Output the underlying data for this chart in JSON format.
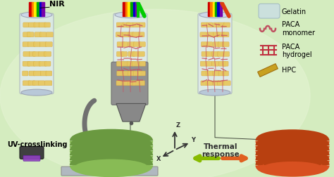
{
  "bg_color": "#d4ecbf",
  "bg_color2": "#e2f2d0",
  "tube_fill": "#dde8f0",
  "tube_border": "#a0a8b8",
  "fiber_yellow": "#e8c860",
  "fiber_yellow2": "#d4a840",
  "fiber_pink": "#c85060",
  "coil_green": "#88bb55",
  "coil_green_dark": "#6a9940",
  "coil_orange": "#d85020",
  "coil_orange_dark": "#b84010",
  "nozzle_color": "#888888",
  "printer_color": "#909090",
  "printer_dark": "#707070",
  "arrow_green": "#88bb00",
  "arrow_orange": "#e06020",
  "axis_color": "#333333",
  "rainbow_colors": [
    "#cc0000",
    "#ff7700",
    "#ffee00",
    "#00aa00",
    "#0000cc",
    "#7700aa"
  ],
  "uv_color": "#9040c0",
  "platform_color": "#b0b8c0",
  "legend_gelatin": "#c8dce8",
  "legend_monomer": "#c05060",
  "legend_hydrogel": "#c03040",
  "legend_hpc": "#c8a020",
  "font_size": 7,
  "nir_text": "NIR",
  "uv_text": "UV-crosslinking",
  "thermal_text": "Thermal\nresponse",
  "legend_labels": [
    "Gelatin",
    "PACA\nmonomer",
    "PACA\nhydrogel",
    "HPC"
  ]
}
